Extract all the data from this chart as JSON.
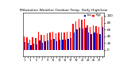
{
  "title": "Milwaukee Weather Outdoor Temp  Daily High/Low",
  "background_color": "#ffffff",
  "high_color": "#ff0000",
  "low_color": "#0000bb",
  "legend_high": "High",
  "legend_low": "Low",
  "ylim": [
    -20,
    110
  ],
  "yticks": [
    0,
    20,
    40,
    60,
    80,
    100
  ],
  "highs": [
    38,
    36,
    30,
    36,
    34,
    54,
    44,
    44,
    48,
    50,
    54,
    48,
    52,
    52,
    52,
    54,
    54,
    76,
    84,
    90,
    88,
    90,
    72,
    68,
    72,
    70,
    68,
    98
  ],
  "lows": [
    22,
    20,
    14,
    18,
    16,
    28,
    20,
    26,
    28,
    30,
    32,
    26,
    30,
    30,
    30,
    32,
    34,
    50,
    60,
    66,
    62,
    64,
    50,
    46,
    50,
    48,
    46,
    68
  ],
  "figsize": [
    1.6,
    0.87
  ],
  "dpi": 100
}
